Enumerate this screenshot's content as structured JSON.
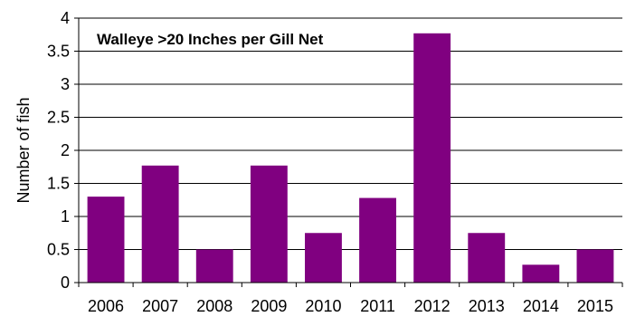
{
  "chart_data": {
    "type": "bar",
    "title": "Walleye >20 Inches per Gill Net",
    "xlabel": "",
    "ylabel": "Number of fish",
    "categories": [
      "2006",
      "2007",
      "2008",
      "2009",
      "2010",
      "2011",
      "2012",
      "2013",
      "2014",
      "2015"
    ],
    "values": [
      1.3,
      1.77,
      0.5,
      1.77,
      0.75,
      1.28,
      3.77,
      0.75,
      0.27,
      0.5
    ],
    "ylim": [
      0,
      4
    ],
    "yticks": [
      "0",
      "0.5",
      "1",
      "1.5",
      "2",
      "2.5",
      "3",
      "3.5",
      "4"
    ],
    "grid": true,
    "legend": "none",
    "bar_color": "#800080"
  }
}
